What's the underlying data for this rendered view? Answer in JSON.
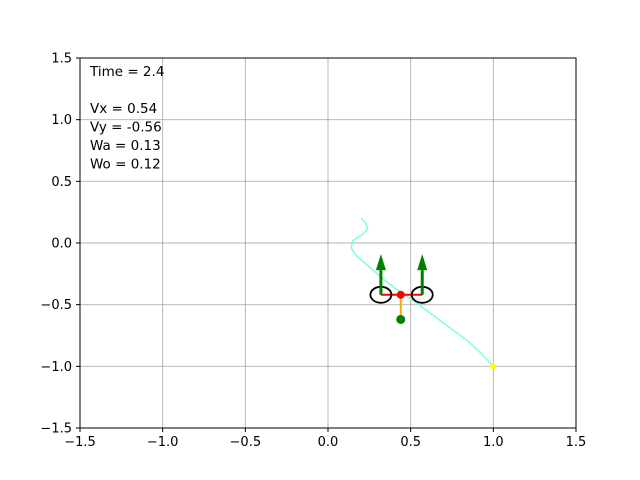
{
  "chart_data": {
    "type": "scatter",
    "title": "",
    "xlabel": "",
    "ylabel": "",
    "xlim": [
      -1.5,
      1.5
    ],
    "ylim": [
      -1.5,
      1.5
    ],
    "grid": true,
    "xticks": [
      "−1.5",
      "−1.0",
      "−0.5",
      "0.0",
      "0.5",
      "1.0",
      "1.5"
    ],
    "yticks": [
      "−1.5",
      "−1.0",
      "−0.5",
      "0.0",
      "0.5",
      "1.0",
      "1.5"
    ],
    "xtick_values": [
      -1.5,
      -1.0,
      -0.5,
      0.0,
      0.5,
      1.0,
      1.5
    ],
    "ytick_values": [
      -1.5,
      -1.0,
      -0.5,
      0.0,
      0.5,
      1.0,
      1.5
    ],
    "annotations": {
      "time": "Time = 2.4",
      "vx": "Vx = 0.54",
      "vy": "Vy = -0.56",
      "wa": "Wa = 0.13",
      "wo": "Wo = 0.12"
    },
    "trajectory": {
      "color": "#7fffd4",
      "x": [
        0.2,
        0.23,
        0.24,
        0.2,
        0.15,
        0.14,
        0.17,
        0.22,
        0.28,
        0.35,
        0.44,
        0.55,
        0.65,
        0.75,
        0.85,
        0.93,
        1.0
      ],
      "y": [
        0.2,
        0.16,
        0.11,
        0.06,
        0.02,
        -0.04,
        -0.1,
        -0.16,
        -0.23,
        -0.31,
        -0.4,
        -0.5,
        -0.6,
        -0.7,
        -0.8,
        -0.9,
        -1.0
      ]
    },
    "target": {
      "x": 1.0,
      "y": -1.0,
      "color": "#ffff00"
    },
    "robot": {
      "left_wheel": {
        "x": 0.32,
        "y": -0.42
      },
      "right_wheel": {
        "x": 0.57,
        "y": -0.42
      },
      "wheel_color": "#000000",
      "axle_color": "#ff0000",
      "center": {
        "x": 0.44,
        "y": -0.42,
        "color": "#ff0000"
      },
      "pendulum_end": {
        "x": 0.44,
        "y": -0.62,
        "color": "#008000"
      },
      "pendulum_color": "#ffa500",
      "velocity_arrows": [
        {
          "x": 0.32,
          "y0": -0.42,
          "y1": -0.09
        },
        {
          "x": 0.57,
          "y0": -0.42,
          "y1": -0.09
        }
      ],
      "arrow_color": "#008000"
    }
  }
}
